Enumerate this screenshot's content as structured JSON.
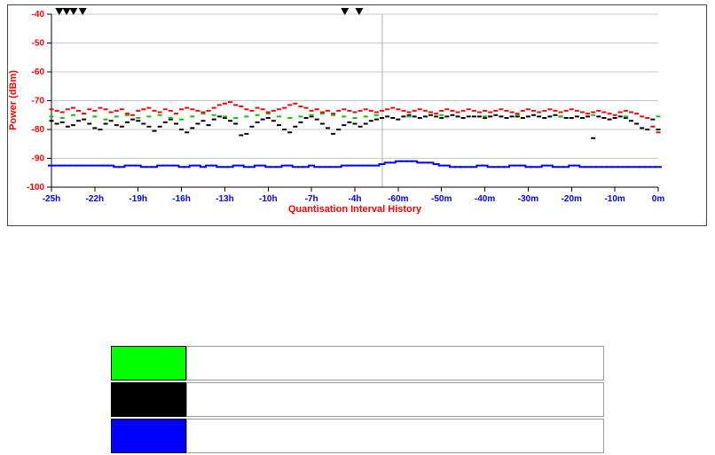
{
  "page": {
    "background": "#ffffff"
  },
  "chart_data": {
    "type": "scatter",
    "title": "",
    "xlabel": "Quantisation Interval History",
    "ylabel": "Power (dBm)",
    "x_tick_labels": [
      "-25h",
      "-22h",
      "-19h",
      "-16h",
      "-13h",
      "-10h",
      "-7h",
      "-4h",
      "-60m",
      "-50m",
      "-40m",
      "-30m",
      "-20m",
      "-10m",
      "0m"
    ],
    "y_ticks": [
      -40,
      -50,
      -60,
      -70,
      -80,
      -90,
      -100
    ],
    "y_tick_labels": [
      "-40",
      "-50",
      "-60",
      "-70",
      "-80",
      "-90",
      "-100"
    ],
    "ylim": [
      -40,
      -100
    ],
    "grid": true,
    "divider_x_index": 7.63,
    "axis_label_color": "#ff0000",
    "x_tick_color": "#0000ff",
    "y_tick_color": "#ff0000",
    "grid_color": "#c9c9c9",
    "event_markers": {
      "shape": "triangle-down",
      "color": "#000000",
      "y_level": -40,
      "x_indices": [
        0.18,
        0.35,
        0.51,
        0.72,
        6.77,
        7.1
      ]
    },
    "series": [
      {
        "name": "black",
        "color": "#000000",
        "x_start": 0,
        "x_step": 0.125,
        "values": [
          -77,
          -78,
          -77.5,
          -79,
          -78.5,
          -77,
          -76.5,
          -78,
          -79.5,
          -80,
          -78,
          -77,
          -78.5,
          -79,
          -77.5,
          -76.5,
          -77,
          -78,
          -79,
          -80.5,
          -79,
          -77.5,
          -76.5,
          -78,
          -80,
          -81,
          -79.5,
          -78,
          -77,
          -78.5,
          -76.5,
          -75.5,
          -76,
          -77,
          -78,
          -82,
          -81.5,
          -79,
          -77.5,
          -76.5,
          -76,
          -77,
          -78.5,
          -80,
          -81,
          -79,
          -77.5,
          -76,
          -75.5,
          -76.5,
          -78,
          -79.5,
          -81.5,
          -80,
          -78.5,
          -77.5,
          -78,
          -79,
          -78,
          -77,
          -76.5,
          -76,
          -75.5,
          -76,
          -76.5,
          -75.5,
          -75,
          -75.5,
          -76,
          -75.5,
          -75,
          -75.5,
          -76,
          -75.5,
          -75,
          -75.5,
          -76,
          -75.5,
          -75.5,
          -75.5,
          -76,
          -75.5,
          -75,
          -75.5,
          -76,
          -75.5,
          -75.5,
          -76,
          -75.5,
          -75,
          -75.5,
          -76,
          -75.5,
          -75,
          -75.5,
          -76,
          -76,
          -75.5,
          -76,
          -75.5,
          -83,
          -75.5,
          -76,
          -76.5,
          -76,
          -75.5,
          -76,
          -77,
          -78,
          -79.5,
          -80,
          -76.5,
          -80
        ]
      },
      {
        "name": "green",
        "color": "#00cc00",
        "x_start": 0,
        "x_step": 0.25,
        "values": [
          -75.5,
          -76,
          -75,
          -74.5,
          -75.5,
          -76.5,
          -75.5,
          -75,
          -76,
          -75.5,
          -75,
          -76,
          -76.5,
          -75.5,
          -74.5,
          -75,
          -75.5,
          -76,
          -75.5,
          -75,
          -74.5,
          -75.5,
          -76,
          -75.5,
          -75,
          -74.5,
          -75,
          -75.5,
          -76,
          -75.5,
          -75,
          null,
          null,
          -75.5,
          null,
          null,
          -75,
          null,
          null,
          null,
          -75.5,
          null,
          null,
          -75,
          null,
          null,
          null,
          -75.5,
          null,
          null,
          -75,
          null,
          null,
          -75.5,
          null,
          null,
          -75.5
        ]
      },
      {
        "name": "red",
        "color": "#ff0000",
        "x_start": 0,
        "x_step": 0.125,
        "values": [
          -73,
          -73.5,
          -74,
          -73,
          -72.5,
          -73.5,
          -74.5,
          -73,
          -73.5,
          -72.5,
          -73,
          -74,
          -73.5,
          -73,
          -74.5,
          -75,
          -73.5,
          -73,
          -72.5,
          -73.5,
          -74,
          -73,
          -73.5,
          -74.5,
          -73,
          -72.5,
          -73,
          -73.5,
          -74,
          -73.5,
          -72.5,
          -71.5,
          -71,
          -70.5,
          -71.5,
          -72,
          -73,
          -73.5,
          -72.5,
          -73,
          -74,
          -73.5,
          -73,
          -72.5,
          -71.5,
          -71,
          -72,
          -72.5,
          -73.5,
          -73,
          -74,
          -73.5,
          -74.5,
          -73.5,
          -73,
          -73.5,
          -74,
          -73.5,
          -73,
          -73.5,
          -74,
          -73.5,
          -73,
          -72.5,
          -73,
          -73.5,
          -74,
          -73.5,
          -73,
          -73.5,
          -74,
          -74.5,
          -73.5,
          -73,
          -73.5,
          -74,
          -73.5,
          -73,
          -73.5,
          -74,
          -73.5,
          -74,
          -73.5,
          -73,
          -73.5,
          -74,
          -74.5,
          -73.5,
          -73,
          -73.5,
          -74,
          -73.5,
          -73,
          -73.5,
          -74,
          -73.5,
          -73,
          -73.5,
          -74,
          -74.5,
          -74,
          -73.5,
          -74,
          -74.5,
          -75,
          -74,
          -73.5,
          -74,
          -74.5,
          -75.5,
          -76,
          -79,
          -81
        ]
      },
      {
        "name": "blue",
        "color": "#0000ff",
        "x_start": 0,
        "x_step": 0.125,
        "values": [
          -92.5,
          -92.5,
          -92.5,
          -92.5,
          -92.5,
          -92.5,
          -92.5,
          -92.5,
          -92.5,
          -92.5,
          -92.5,
          -92.5,
          -93,
          -93,
          -92.5,
          -92.5,
          -92.5,
          -93,
          -93,
          -93,
          -92.5,
          -92.5,
          -92.5,
          -92.5,
          -93,
          -93,
          -92.5,
          -92.5,
          -93,
          -92.5,
          -92.5,
          -93,
          -93,
          -93,
          -92.5,
          -92.5,
          -93,
          -93,
          -92.5,
          -92.5,
          -93,
          -93,
          -93,
          -92.5,
          -92.5,
          -93,
          -93,
          -93,
          -92.5,
          -93,
          -93,
          -93,
          -93,
          -93,
          -92.5,
          -92.5,
          -92.5,
          -92.5,
          -92.5,
          -92.5,
          -92.5,
          -92,
          -91.5,
          -91.5,
          -91,
          -91,
          -91,
          -91,
          -91.5,
          -91.5,
          -91.5,
          -92,
          -92.5,
          -92.5,
          -93,
          -93,
          -93,
          -93,
          -93,
          -92.5,
          -92.5,
          -93,
          -93,
          -93,
          -93,
          -92.5,
          -92.5,
          -92.5,
          -93,
          -93,
          -93,
          -92.5,
          -92.5,
          -93,
          -93,
          -93,
          -92.5,
          -92.5,
          -93,
          -93,
          -93,
          -93,
          -93,
          -93,
          -93,
          -93,
          -93,
          -93,
          -93,
          -93,
          -93,
          -93,
          -93
        ]
      }
    ]
  },
  "legend": {
    "items": [
      {
        "name": "green",
        "color": "#00ff00",
        "label": ""
      },
      {
        "name": "black",
        "color": "#000000",
        "label": ""
      },
      {
        "name": "blue",
        "color": "#0000ff",
        "label": ""
      }
    ]
  }
}
